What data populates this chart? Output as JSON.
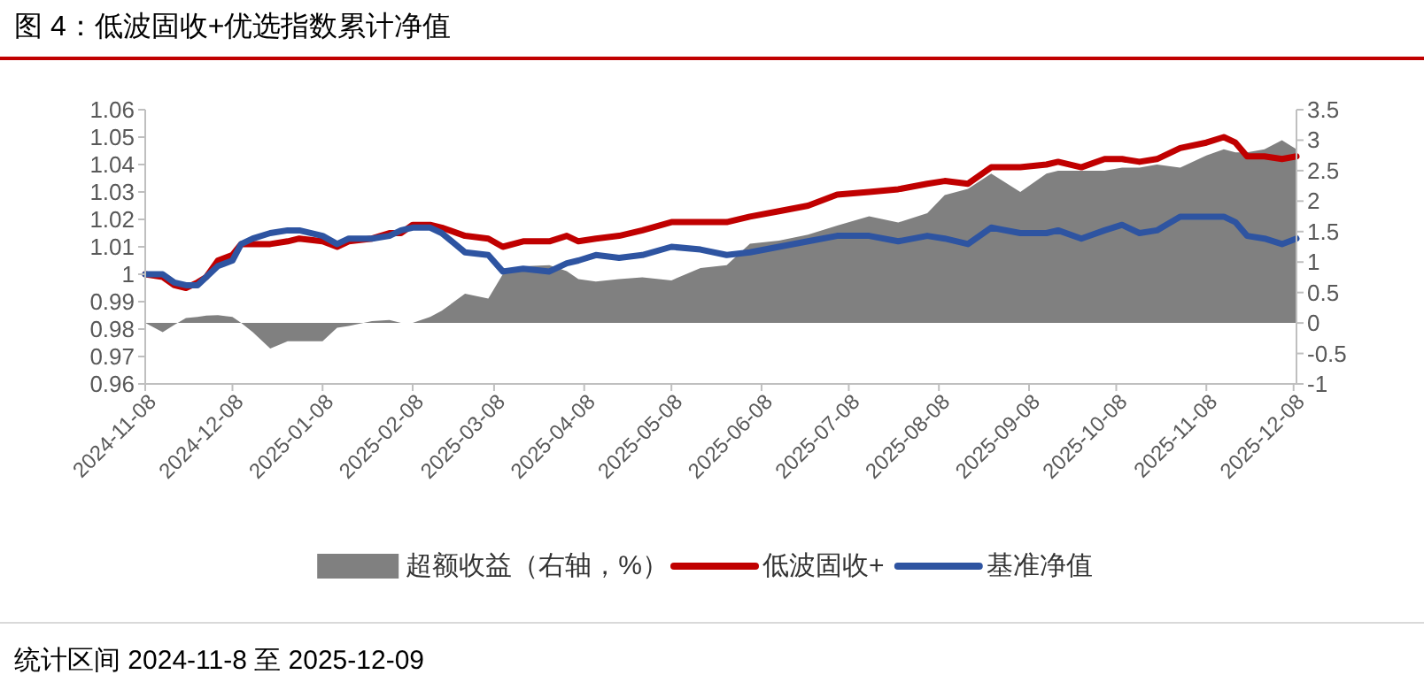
{
  "chart_data": {
    "type": "line",
    "title": "图 4：低波固收+优选指数累计净值",
    "annotations": [
      "统计区间 2024-11-8 至 2025-12-09"
    ],
    "x": [
      "2024-11-08",
      "2024-11-14",
      "2024-11-18",
      "2024-11-22",
      "2024-11-26",
      "2024-11-29",
      "2024-12-03",
      "2024-12-08",
      "2024-12-11",
      "2024-12-15",
      "2024-12-21",
      "2024-12-27",
      "2024-12-31",
      "2025-01-08",
      "2025-01-13",
      "2025-01-17",
      "2025-01-25",
      "2025-01-31",
      "2025-02-04",
      "2025-02-08",
      "2025-02-14",
      "2025-02-18",
      "2025-02-26",
      "2025-03-06",
      "2025-03-11",
      "2025-03-18",
      "2025-03-27",
      "2025-04-02",
      "2025-04-06",
      "2025-04-12",
      "2025-04-20",
      "2025-04-28",
      "2025-05-08",
      "2025-05-18",
      "2025-05-27",
      "2025-06-04",
      "2025-06-14",
      "2025-06-24",
      "2025-07-04",
      "2025-07-15",
      "2025-07-25",
      "2025-08-04",
      "2025-08-10",
      "2025-08-18",
      "2025-08-26",
      "2025-09-05",
      "2025-09-14",
      "2025-09-18",
      "2025-09-26",
      "2025-10-04",
      "2025-10-10",
      "2025-10-16",
      "2025-10-22",
      "2025-10-30",
      "2025-11-08",
      "2025-11-14",
      "2025-11-18",
      "2025-11-22",
      "2025-11-28",
      "2025-12-04",
      "2025-12-09"
    ],
    "series": [
      {
        "name": "超额收益（右轴，%）",
        "type": "area",
        "axis": "y2",
        "color": "#808080",
        "values": [
          0,
          -0.15,
          -0.03,
          0.08,
          0.1,
          0.12,
          0.13,
          0.1,
          0,
          -0.15,
          -0.42,
          -0.3,
          -0.3,
          -0.3,
          -0.08,
          -0.05,
          0.03,
          0.05,
          0,
          0,
          0.1,
          0.2,
          0.48,
          0.4,
          0.8,
          0.93,
          0.95,
          0.85,
          0.72,
          0.68,
          0.72,
          0.75,
          0.7,
          0.9,
          0.95,
          1.3,
          1.35,
          1.45,
          1.6,
          1.75,
          1.65,
          1.8,
          2.1,
          2.2,
          2.45,
          2.15,
          2.45,
          2.5,
          2.5,
          2.5,
          2.55,
          2.55,
          2.6,
          2.55,
          2.75,
          2.85,
          2.8,
          2.8,
          2.85,
          3,
          2.85
        ]
      },
      {
        "name": "低波固收+",
        "color": "#c00000",
        "values": [
          1,
          0.999,
          0.996,
          0.995,
          0.997,
          0.999,
          1.005,
          1.007,
          1.011,
          1.011,
          1.011,
          1.012,
          1.013,
          1.012,
          1.01,
          1.012,
          1.013,
          1.015,
          1.015,
          1.018,
          1.018,
          1.017,
          1.014,
          1.013,
          1.01,
          1.012,
          1.012,
          1.014,
          1.012,
          1.013,
          1.014,
          1.016,
          1.019,
          1.019,
          1.019,
          1.021,
          1.023,
          1.025,
          1.029,
          1.03,
          1.031,
          1.033,
          1.034,
          1.033,
          1.039,
          1.039,
          1.04,
          1.041,
          1.039,
          1.042,
          1.042,
          1.041,
          1.042,
          1.046,
          1.048,
          1.05,
          1.048,
          1.043,
          1.043,
          1.042,
          1.043
        ]
      },
      {
        "name": "基准净值",
        "color": "#2e54a1",
        "values": [
          1,
          1,
          0.997,
          0.996,
          0.996,
          0.999,
          1.003,
          1.005,
          1.011,
          1.013,
          1.015,
          1.016,
          1.016,
          1.014,
          1.011,
          1.013,
          1.013,
          1.014,
          1.016,
          1.017,
          1.017,
          1.015,
          1.008,
          1.007,
          1.001,
          1.002,
          1.001,
          1.004,
          1.005,
          1.007,
          1.006,
          1.007,
          1.01,
          1.009,
          1.007,
          1.008,
          1.01,
          1.012,
          1.014,
          1.014,
          1.012,
          1.014,
          1.013,
          1.011,
          1.017,
          1.015,
          1.015,
          1.016,
          1.013,
          1.016,
          1.018,
          1.015,
          1.016,
          1.021,
          1.021,
          1.021,
          1.019,
          1.014,
          1.013,
          1.011,
          1.013
        ]
      }
    ],
    "xlim": [
      "2024-11-08",
      "2025-12-09"
    ],
    "xticks": [
      "2024-11-08",
      "2024-12-08",
      "2025-01-08",
      "2025-02-08",
      "2025-03-08",
      "2025-04-08",
      "2025-05-08",
      "2025-06-08",
      "2025-07-08",
      "2025-08-08",
      "2025-09-08",
      "2025-10-08",
      "2025-11-08",
      "2025-12-08"
    ],
    "ylim": [
      0.96,
      1.06
    ],
    "yticks": [
      0.96,
      0.97,
      0.98,
      0.99,
      1,
      1.01,
      1.02,
      1.03,
      1.04,
      1.05,
      1.06
    ],
    "y2lim": [
      -1,
      3.5
    ],
    "y2ticks": [
      -1,
      -0.5,
      0,
      0.5,
      1,
      1.5,
      2,
      2.5,
      3,
      3.5
    ],
    "legend": "bottom"
  }
}
